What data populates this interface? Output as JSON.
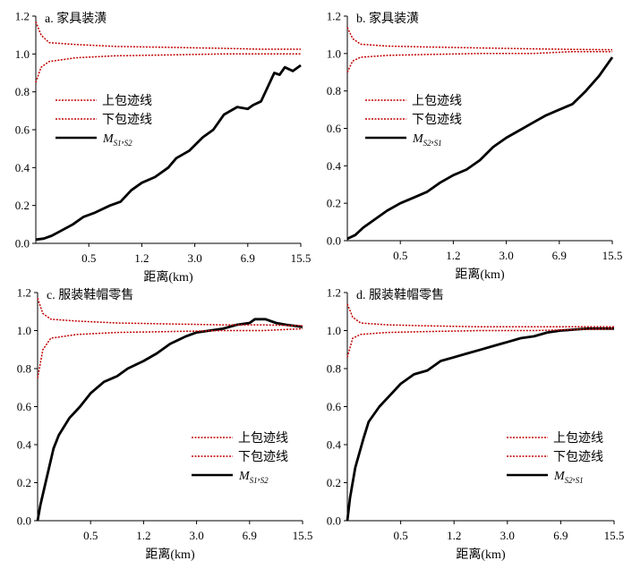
{
  "chart_data": [
    {
      "type": "line",
      "title": "a. 家具装潢",
      "xlabel": "距离(km)",
      "ylabel": "",
      "x_ticks": [
        "0.5",
        "1.2",
        "3.0",
        "6.9",
        "15.5"
      ],
      "x_tick_positions": [
        0.2,
        0.4,
        0.6,
        0.8,
        1.0
      ],
      "y_ticks": [
        "0.0",
        "0.2",
        "0.4",
        "0.6",
        "0.8",
        "1.0",
        "1.2"
      ],
      "ylim": [
        0,
        1.2
      ],
      "x_scale": "log-rescaled (index 0-1)",
      "legend_position": "center-left",
      "legend": [
        {
          "label": "上包迹线",
          "style": "dotted",
          "color": "#c00000"
        },
        {
          "label": "下包迹线",
          "style": "dotted",
          "color": "#c00000"
        },
        {
          "label": "M",
          "sub1": "S1",
          "sub2": "S2",
          "style": "solid",
          "color": "#000000"
        }
      ],
      "series": [
        {
          "key": "M",
          "points": [
            [
              0,
              0.02
            ],
            [
              0.03,
              0.025
            ],
            [
              0.06,
              0.04
            ],
            [
              0.1,
              0.07
            ],
            [
              0.14,
              0.1
            ],
            [
              0.18,
              0.14
            ],
            [
              0.22,
              0.16
            ],
            [
              0.28,
              0.2
            ],
            [
              0.32,
              0.22
            ],
            [
              0.36,
              0.28
            ],
            [
              0.4,
              0.32
            ],
            [
              0.45,
              0.35
            ],
            [
              0.5,
              0.4
            ],
            [
              0.53,
              0.45
            ],
            [
              0.58,
              0.49
            ],
            [
              0.63,
              0.56
            ],
            [
              0.67,
              0.6
            ],
            [
              0.71,
              0.68
            ],
            [
              0.76,
              0.72
            ],
            [
              0.8,
              0.71
            ],
            [
              0.82,
              0.73
            ],
            [
              0.85,
              0.75
            ],
            [
              0.88,
              0.84
            ],
            [
              0.9,
              0.9
            ],
            [
              0.92,
              0.89
            ],
            [
              0.94,
              0.93
            ],
            [
              0.97,
              0.91
            ],
            [
              1.0,
              0.94
            ]
          ]
        },
        {
          "key": "upper",
          "points": [
            [
              0,
              1.17
            ],
            [
              0.02,
              1.1
            ],
            [
              0.05,
              1.06
            ],
            [
              0.15,
              1.05
            ],
            [
              0.3,
              1.04
            ],
            [
              0.5,
              1.035
            ],
            [
              0.7,
              1.03
            ],
            [
              0.85,
              1.025
            ],
            [
              1.0,
              1.025
            ]
          ]
        },
        {
          "key": "lower",
          "points": [
            [
              0,
              0.85
            ],
            [
              0.02,
              0.93
            ],
            [
              0.05,
              0.96
            ],
            [
              0.15,
              0.98
            ],
            [
              0.3,
              0.99
            ],
            [
              0.5,
              0.995
            ],
            [
              0.7,
              1.0
            ],
            [
              0.85,
              1.0
            ],
            [
              1.0,
              1.0
            ]
          ]
        }
      ]
    },
    {
      "type": "line",
      "title": "b. 家具装潢",
      "xlabel": "距离(km)",
      "ylabel": "",
      "x_ticks": [
        "0.5",
        "1.2",
        "3.0",
        "6.9",
        "15.5"
      ],
      "x_tick_positions": [
        0.2,
        0.4,
        0.6,
        0.8,
        1.0
      ],
      "y_ticks": [
        "0.0",
        "0.2",
        "0.4",
        "0.6",
        "0.8",
        "1.0",
        "1.2"
      ],
      "ylim": [
        0,
        1.2
      ],
      "x_scale": "log-rescaled (index 0-1)",
      "legend_position": "center-left",
      "legend": [
        {
          "label": "上包迹线",
          "style": "dotted",
          "color": "#c00000"
        },
        {
          "label": "下包迹线",
          "style": "dotted",
          "color": "#c00000"
        },
        {
          "label": "M",
          "sub1": "S2",
          "sub2": "S1",
          "style": "solid",
          "color": "#000000"
        }
      ],
      "series": [
        {
          "key": "M",
          "points": [
            [
              0,
              0.01
            ],
            [
              0.03,
              0.03
            ],
            [
              0.06,
              0.07
            ],
            [
              0.1,
              0.11
            ],
            [
              0.15,
              0.16
            ],
            [
              0.2,
              0.2
            ],
            [
              0.25,
              0.23
            ],
            [
              0.3,
              0.26
            ],
            [
              0.35,
              0.31
            ],
            [
              0.4,
              0.35
            ],
            [
              0.45,
              0.38
            ],
            [
              0.5,
              0.43
            ],
            [
              0.55,
              0.5
            ],
            [
              0.6,
              0.55
            ],
            [
              0.65,
              0.59
            ],
            [
              0.7,
              0.63
            ],
            [
              0.75,
              0.67
            ],
            [
              0.8,
              0.7
            ],
            [
              0.85,
              0.73
            ],
            [
              0.9,
              0.8
            ],
            [
              0.95,
              0.88
            ],
            [
              1.0,
              0.98
            ]
          ]
        },
        {
          "key": "upper",
          "points": [
            [
              0,
              1.14
            ],
            [
              0.02,
              1.08
            ],
            [
              0.05,
              1.05
            ],
            [
              0.15,
              1.04
            ],
            [
              0.3,
              1.035
            ],
            [
              0.5,
              1.03
            ],
            [
              0.7,
              1.025
            ],
            [
              0.85,
              1.022
            ],
            [
              1.0,
              1.02
            ]
          ]
        },
        {
          "key": "lower",
          "points": [
            [
              0,
              0.9
            ],
            [
              0.02,
              0.96
            ],
            [
              0.05,
              0.98
            ],
            [
              0.15,
              0.99
            ],
            [
              0.3,
              0.995
            ],
            [
              0.5,
              1.0
            ],
            [
              0.7,
              1.0
            ],
            [
              0.85,
              1.01
            ],
            [
              1.0,
              1.01
            ]
          ]
        }
      ]
    },
    {
      "type": "line",
      "title": "c. 服装鞋帽零售",
      "xlabel": "距离(km)",
      "ylabel": "",
      "x_ticks": [
        "0.5",
        "1.2",
        "3.0",
        "6.9",
        "15.5"
      ],
      "x_tick_positions": [
        0.2,
        0.4,
        0.6,
        0.8,
        1.0
      ],
      "y_ticks": [
        "0.0",
        "0.2",
        "0.4",
        "0.6",
        "0.8",
        "1.0",
        "1.2"
      ],
      "ylim": [
        0,
        1.2
      ],
      "x_scale": "log-rescaled (index 0-1)",
      "legend_position": "bottom-right",
      "legend": [
        {
          "label": "上包迹线",
          "style": "dotted",
          "color": "#c00000"
        },
        {
          "label": "下包迹线",
          "style": "dotted",
          "color": "#c00000"
        },
        {
          "label": "M",
          "sub1": "S1",
          "sub2": "S2",
          "style": "solid",
          "color": "#000000"
        }
      ],
      "series": [
        {
          "key": "M",
          "points": [
            [
              0,
              0.0
            ],
            [
              0.01,
              0.08
            ],
            [
              0.03,
              0.2
            ],
            [
              0.06,
              0.38
            ],
            [
              0.08,
              0.45
            ],
            [
              0.12,
              0.54
            ],
            [
              0.16,
              0.6
            ],
            [
              0.2,
              0.67
            ],
            [
              0.25,
              0.73
            ],
            [
              0.3,
              0.76
            ],
            [
              0.34,
              0.8
            ],
            [
              0.4,
              0.84
            ],
            [
              0.45,
              0.88
            ],
            [
              0.5,
              0.93
            ],
            [
              0.53,
              0.95
            ],
            [
              0.56,
              0.97
            ],
            [
              0.6,
              0.99
            ],
            [
              0.65,
              1.0
            ],
            [
              0.7,
              1.01
            ],
            [
              0.75,
              1.03
            ],
            [
              0.8,
              1.04
            ],
            [
              0.82,
              1.06
            ],
            [
              0.86,
              1.06
            ],
            [
              0.9,
              1.04
            ],
            [
              0.94,
              1.03
            ],
            [
              1.0,
              1.02
            ]
          ]
        },
        {
          "key": "upper",
          "points": [
            [
              0,
              1.17
            ],
            [
              0.02,
              1.09
            ],
            [
              0.05,
              1.06
            ],
            [
              0.15,
              1.05
            ],
            [
              0.3,
              1.04
            ],
            [
              0.5,
              1.035
            ],
            [
              0.7,
              1.03
            ],
            [
              0.85,
              1.03
            ],
            [
              1.0,
              1.025
            ]
          ]
        },
        {
          "key": "lower",
          "points": [
            [
              0,
              0.75
            ],
            [
              0.02,
              0.9
            ],
            [
              0.05,
              0.96
            ],
            [
              0.15,
              0.98
            ],
            [
              0.3,
              0.99
            ],
            [
              0.5,
              0.995
            ],
            [
              0.7,
              1.0
            ],
            [
              0.85,
              1.0
            ],
            [
              1.0,
              1.01
            ]
          ]
        }
      ]
    },
    {
      "type": "line",
      "title": "d. 服装鞋帽零售",
      "xlabel": "距离(km)",
      "ylabel": "",
      "x_ticks": [
        "0.5",
        "1.2",
        "3.0",
        "6.9",
        "15.5"
      ],
      "x_tick_positions": [
        0.2,
        0.4,
        0.6,
        0.8,
        1.0
      ],
      "y_ticks": [
        "0.0",
        "0.2",
        "0.4",
        "0.6",
        "0.8",
        "1.0",
        "1.2"
      ],
      "ylim": [
        0,
        1.2
      ],
      "x_scale": "log-rescaled (index 0-1)",
      "legend_position": "bottom-right",
      "legend": [
        {
          "label": "上包迹线",
          "style": "dotted",
          "color": "#c00000"
        },
        {
          "label": "下包迹线",
          "style": "dotted",
          "color": "#c00000"
        },
        {
          "label": "M",
          "sub1": "S2",
          "sub2": "S1",
          "style": "solid",
          "color": "#000000"
        }
      ],
      "series": [
        {
          "key": "M",
          "points": [
            [
              0,
              0.0
            ],
            [
              0.01,
              0.12
            ],
            [
              0.03,
              0.28
            ],
            [
              0.06,
              0.43
            ],
            [
              0.08,
              0.52
            ],
            [
              0.12,
              0.6
            ],
            [
              0.16,
              0.66
            ],
            [
              0.2,
              0.72
            ],
            [
              0.25,
              0.77
            ],
            [
              0.3,
              0.79
            ],
            [
              0.35,
              0.84
            ],
            [
              0.4,
              0.86
            ],
            [
              0.45,
              0.88
            ],
            [
              0.5,
              0.9
            ],
            [
              0.55,
              0.92
            ],
            [
              0.6,
              0.94
            ],
            [
              0.65,
              0.96
            ],
            [
              0.7,
              0.97
            ],
            [
              0.75,
              0.99
            ],
            [
              0.8,
              1.0
            ],
            [
              0.85,
              1.005
            ],
            [
              0.9,
              1.01
            ],
            [
              1.0,
              1.01
            ]
          ]
        },
        {
          "key": "upper",
          "points": [
            [
              0,
              1.14
            ],
            [
              0.02,
              1.07
            ],
            [
              0.05,
              1.04
            ],
            [
              0.15,
              1.03
            ],
            [
              0.3,
              1.025
            ],
            [
              0.5,
              1.02
            ],
            [
              0.7,
              1.02
            ],
            [
              0.85,
              1.02
            ],
            [
              1.0,
              1.02
            ]
          ]
        },
        {
          "key": "lower",
          "points": [
            [
              0,
              0.86
            ],
            [
              0.02,
              0.96
            ],
            [
              0.05,
              0.98
            ],
            [
              0.15,
              0.99
            ],
            [
              0.3,
              0.995
            ],
            [
              0.5,
              1.0
            ],
            [
              0.7,
              1.0
            ],
            [
              0.85,
              1.005
            ],
            [
              1.0,
              1.01
            ]
          ]
        }
      ]
    }
  ]
}
